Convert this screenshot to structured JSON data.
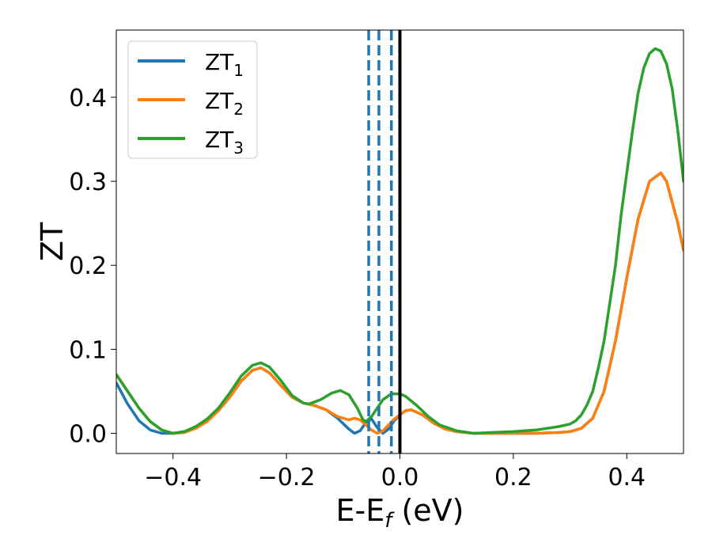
{
  "chart_data": {
    "type": "line",
    "xlabel": {
      "main": "E-E",
      "sub": "f",
      "suffix": " (eV)"
    },
    "ylabel": "ZT",
    "xlim": [
      -0.5,
      0.5
    ],
    "ylim": [
      -0.024,
      0.48
    ],
    "xticks": [
      -0.4,
      -0.2,
      0.0,
      0.2,
      0.4
    ],
    "xtick_labels": [
      "−0.4",
      "−0.2",
      "0.0",
      "0.2",
      "0.4"
    ],
    "yticks": [
      0.0,
      0.1,
      0.2,
      0.3,
      0.4
    ],
    "ytick_labels": [
      "0.0",
      "0.1",
      "0.2",
      "0.3",
      "0.4"
    ],
    "grid": false,
    "legend_position": "top-left",
    "series": [
      {
        "name": "ZT",
        "sub": "1",
        "color": "#1f77b4",
        "points": [
          [
            -0.5,
            0.06
          ],
          [
            -0.48,
            0.035
          ],
          [
            -0.46,
            0.015
          ],
          [
            -0.44,
            0.004
          ],
          [
            -0.42,
            0.0
          ],
          [
            -0.4,
            0.0
          ],
          [
            -0.38,
            0.002
          ],
          [
            -0.36,
            0.007
          ],
          [
            -0.34,
            0.015
          ],
          [
            -0.32,
            0.027
          ],
          [
            -0.3,
            0.043
          ],
          [
            -0.28,
            0.062
          ],
          [
            -0.26,
            0.075
          ],
          [
            -0.245,
            0.078
          ],
          [
            -0.23,
            0.072
          ],
          [
            -0.21,
            0.057
          ],
          [
            -0.19,
            0.043
          ],
          [
            -0.17,
            0.036
          ],
          [
            -0.15,
            0.033
          ],
          [
            -0.13,
            0.028
          ],
          [
            -0.11,
            0.018
          ],
          [
            -0.09,
            0.005
          ],
          [
            -0.08,
            0.0
          ],
          [
            -0.07,
            0.003
          ],
          [
            -0.06,
            0.013
          ],
          [
            -0.05,
            0.017
          ],
          [
            -0.04,
            0.007
          ],
          [
            -0.03,
            0.0
          ],
          [
            -0.02,
            0.005
          ],
          [
            -0.01,
            0.015
          ],
          [
            0.0,
            0.022
          ],
          [
            0.01,
            0.027
          ],
          [
            0.02,
            0.028
          ],
          [
            0.04,
            0.022
          ],
          [
            0.06,
            0.012
          ],
          [
            0.08,
            0.005
          ],
          [
            0.1,
            0.002
          ],
          [
            0.13,
            0.0
          ],
          [
            0.16,
            0.0
          ],
          [
            0.2,
            0.0
          ],
          [
            0.24,
            0.0
          ],
          [
            0.28,
            0.001
          ],
          [
            0.3,
            0.002
          ],
          [
            0.32,
            0.006
          ],
          [
            0.34,
            0.018
          ],
          [
            0.36,
            0.05
          ],
          [
            0.38,
            0.11
          ],
          [
            0.4,
            0.185
          ],
          [
            0.42,
            0.255
          ],
          [
            0.44,
            0.3
          ],
          [
            0.46,
            0.31
          ],
          [
            0.47,
            0.3
          ],
          [
            0.48,
            0.275
          ],
          [
            0.49,
            0.25
          ],
          [
            0.5,
            0.218
          ]
        ]
      },
      {
        "name": "ZT",
        "sub": "2",
        "color": "#ff7f0e",
        "points": [
          [
            -0.5,
            0.07
          ],
          [
            -0.48,
            0.05
          ],
          [
            -0.46,
            0.03
          ],
          [
            -0.44,
            0.014
          ],
          [
            -0.42,
            0.004
          ],
          [
            -0.4,
            0.0
          ],
          [
            -0.38,
            0.001
          ],
          [
            -0.36,
            0.006
          ],
          [
            -0.34,
            0.014
          ],
          [
            -0.32,
            0.027
          ],
          [
            -0.3,
            0.043
          ],
          [
            -0.28,
            0.062
          ],
          [
            -0.26,
            0.075
          ],
          [
            -0.245,
            0.078
          ],
          [
            -0.23,
            0.072
          ],
          [
            -0.21,
            0.057
          ],
          [
            -0.19,
            0.043
          ],
          [
            -0.17,
            0.036
          ],
          [
            -0.15,
            0.033
          ],
          [
            -0.13,
            0.028
          ],
          [
            -0.11,
            0.02
          ],
          [
            -0.09,
            0.016
          ],
          [
            -0.08,
            0.018
          ],
          [
            -0.07,
            0.016
          ],
          [
            -0.06,
            0.01
          ],
          [
            -0.05,
            0.004
          ],
          [
            -0.04,
            0.0
          ],
          [
            -0.03,
            0.003
          ],
          [
            -0.02,
            0.01
          ],
          [
            -0.01,
            0.017
          ],
          [
            0.0,
            0.022
          ],
          [
            0.01,
            0.027
          ],
          [
            0.02,
            0.028
          ],
          [
            0.04,
            0.022
          ],
          [
            0.06,
            0.012
          ],
          [
            0.08,
            0.005
          ],
          [
            0.1,
            0.002
          ],
          [
            0.13,
            0.0
          ],
          [
            0.16,
            0.0
          ],
          [
            0.2,
            0.0
          ],
          [
            0.24,
            0.0
          ],
          [
            0.28,
            0.001
          ],
          [
            0.3,
            0.002
          ],
          [
            0.32,
            0.006
          ],
          [
            0.34,
            0.018
          ],
          [
            0.36,
            0.05
          ],
          [
            0.38,
            0.11
          ],
          [
            0.4,
            0.185
          ],
          [
            0.42,
            0.255
          ],
          [
            0.44,
            0.3
          ],
          [
            0.46,
            0.31
          ],
          [
            0.47,
            0.3
          ],
          [
            0.48,
            0.275
          ],
          [
            0.49,
            0.25
          ],
          [
            0.5,
            0.218
          ]
        ]
      },
      {
        "name": "ZT",
        "sub": "3",
        "color": "#2ca02c",
        "points": [
          [
            -0.5,
            0.07
          ],
          [
            -0.48,
            0.05
          ],
          [
            -0.46,
            0.03
          ],
          [
            -0.44,
            0.014
          ],
          [
            -0.42,
            0.004
          ],
          [
            -0.4,
            0.0
          ],
          [
            -0.38,
            0.002
          ],
          [
            -0.36,
            0.008
          ],
          [
            -0.34,
            0.017
          ],
          [
            -0.32,
            0.03
          ],
          [
            -0.3,
            0.048
          ],
          [
            -0.28,
            0.068
          ],
          [
            -0.26,
            0.081
          ],
          [
            -0.245,
            0.084
          ],
          [
            -0.23,
            0.079
          ],
          [
            -0.21,
            0.063
          ],
          [
            -0.19,
            0.045
          ],
          [
            -0.17,
            0.036
          ],
          [
            -0.16,
            0.035
          ],
          [
            -0.14,
            0.04
          ],
          [
            -0.12,
            0.048
          ],
          [
            -0.105,
            0.051
          ],
          [
            -0.09,
            0.046
          ],
          [
            -0.075,
            0.03
          ],
          [
            -0.065,
            0.016
          ],
          [
            -0.06,
            0.014
          ],
          [
            -0.05,
            0.02
          ],
          [
            -0.04,
            0.03
          ],
          [
            -0.03,
            0.04
          ],
          [
            -0.015,
            0.047
          ],
          [
            0.0,
            0.047
          ],
          [
            0.01,
            0.044
          ],
          [
            0.03,
            0.033
          ],
          [
            0.05,
            0.02
          ],
          [
            0.07,
            0.01
          ],
          [
            0.1,
            0.003
          ],
          [
            0.13,
            0.0
          ],
          [
            0.16,
            0.001
          ],
          [
            0.2,
            0.002
          ],
          [
            0.24,
            0.004
          ],
          [
            0.26,
            0.006
          ],
          [
            0.28,
            0.008
          ],
          [
            0.3,
            0.011
          ],
          [
            0.31,
            0.015
          ],
          [
            0.32,
            0.022
          ],
          [
            0.33,
            0.034
          ],
          [
            0.34,
            0.05
          ],
          [
            0.35,
            0.078
          ],
          [
            0.36,
            0.11
          ],
          [
            0.37,
            0.155
          ],
          [
            0.38,
            0.2
          ],
          [
            0.39,
            0.26
          ],
          [
            0.4,
            0.31
          ],
          [
            0.41,
            0.36
          ],
          [
            0.42,
            0.405
          ],
          [
            0.43,
            0.435
          ],
          [
            0.44,
            0.452
          ],
          [
            0.45,
            0.458
          ],
          [
            0.46,
            0.455
          ],
          [
            0.47,
            0.44
          ],
          [
            0.48,
            0.41
          ],
          [
            0.49,
            0.36
          ],
          [
            0.5,
            0.3
          ]
        ]
      }
    ],
    "vertical_lines": [
      {
        "x": 0.0,
        "style": "solid",
        "color": "#000000"
      },
      {
        "x": -0.055,
        "style": "dashed",
        "color": "#1f77b4"
      },
      {
        "x": -0.037,
        "style": "dashed",
        "color": "#1f77b4"
      },
      {
        "x": -0.015,
        "style": "dashed",
        "color": "#1f77b4"
      }
    ]
  }
}
